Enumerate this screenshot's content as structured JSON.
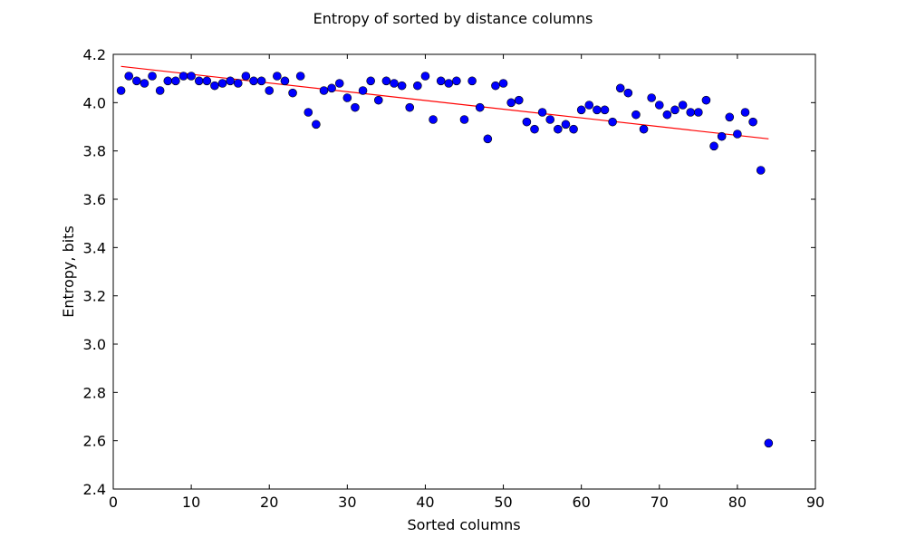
{
  "chart_data": {
    "type": "scatter",
    "title": "Entropy of sorted by distance columns",
    "xlabel": "Sorted columns",
    "ylabel": "Entropy, bits",
    "xlim": [
      0,
      90
    ],
    "ylim": [
      2.4,
      4.2
    ],
    "xticks": [
      "0",
      "10",
      "20",
      "30",
      "40",
      "50",
      "60",
      "70",
      "80",
      "90"
    ],
    "yticks": [
      "2.4",
      "2.6",
      "2.8",
      "3.0",
      "3.2",
      "3.4",
      "3.6",
      "3.8",
      "4.0",
      "4.2"
    ],
    "grid": false,
    "colors": {
      "points": "#0000ff",
      "trend": "#ff0000"
    },
    "series": [
      {
        "kind": "points",
        "x": [
          1,
          2,
          3,
          4,
          5,
          6,
          7,
          8,
          9,
          10,
          11,
          12,
          13,
          14,
          15,
          16,
          17,
          18,
          19,
          20,
          21,
          22,
          23,
          24,
          25,
          26,
          27,
          28,
          29,
          30,
          31,
          32,
          33,
          34,
          35,
          36,
          37,
          38,
          39,
          40,
          41,
          42,
          43,
          44,
          45,
          46,
          47,
          48,
          49,
          50,
          51,
          52,
          53,
          54,
          55,
          56,
          57,
          58,
          59,
          60,
          61,
          62,
          63,
          64,
          65,
          66,
          67,
          68,
          69,
          70,
          71,
          72,
          73,
          74,
          75,
          76,
          77,
          78,
          79,
          80,
          81,
          82,
          83,
          84
        ],
        "values": [
          4.05,
          4.11,
          4.09,
          4.08,
          4.11,
          4.05,
          4.09,
          4.09,
          4.11,
          4.11,
          4.09,
          4.09,
          4.07,
          4.08,
          4.09,
          4.08,
          4.11,
          4.09,
          4.09,
          4.05,
          4.11,
          4.09,
          4.04,
          4.11,
          3.96,
          3.91,
          4.05,
          4.06,
          4.08,
          4.02,
          3.98,
          4.05,
          4.09,
          4.01,
          4.09,
          4.08,
          4.07,
          3.98,
          4.07,
          4.11,
          3.93,
          4.09,
          4.08,
          4.09,
          3.93,
          4.09,
          3.98,
          3.85,
          4.07,
          4.08,
          4.0,
          4.01,
          3.92,
          3.89,
          3.96,
          3.93,
          3.89,
          3.91,
          3.89,
          3.97,
          3.99,
          3.97,
          3.97,
          3.92,
          4.06,
          4.04,
          3.95,
          3.89,
          4.02,
          3.99,
          3.95,
          3.97,
          3.99,
          3.96,
          3.96,
          4.01,
          3.82,
          3.86,
          3.94,
          3.87,
          3.96,
          3.92,
          3.72,
          2.59
        ]
      },
      {
        "kind": "trend",
        "x": [
          1,
          84
        ],
        "values": [
          4.15,
          3.85
        ]
      }
    ]
  }
}
